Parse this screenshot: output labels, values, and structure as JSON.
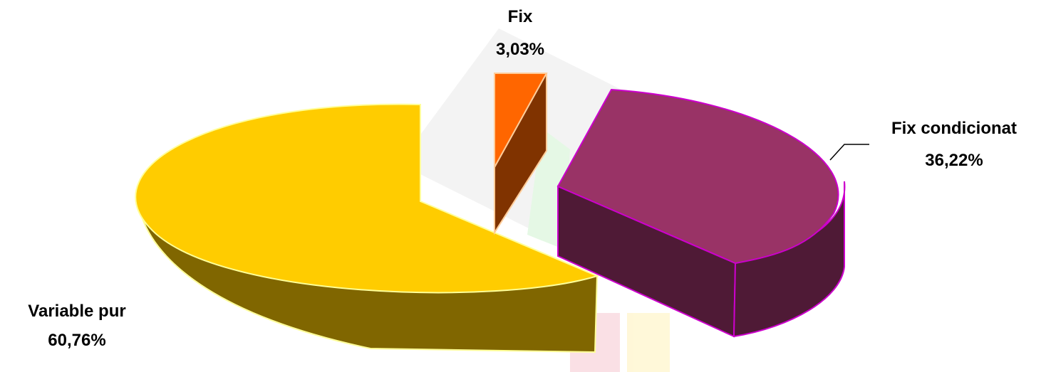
{
  "chart_data": {
    "type": "pie",
    "style": "3d-exploded",
    "title": "",
    "legend": "none",
    "slices": [
      {
        "name": "Fix",
        "value": 3.03,
        "label": "3,03%",
        "color": "#ff6600"
      },
      {
        "name": "Fix condicionat",
        "value": 36.22,
        "label": "36,22%",
        "color": "#993366"
      },
      {
        "name": "Variable pur",
        "value": 60.76,
        "label": "60,76%",
        "color": "#ffcc00"
      }
    ]
  }
}
